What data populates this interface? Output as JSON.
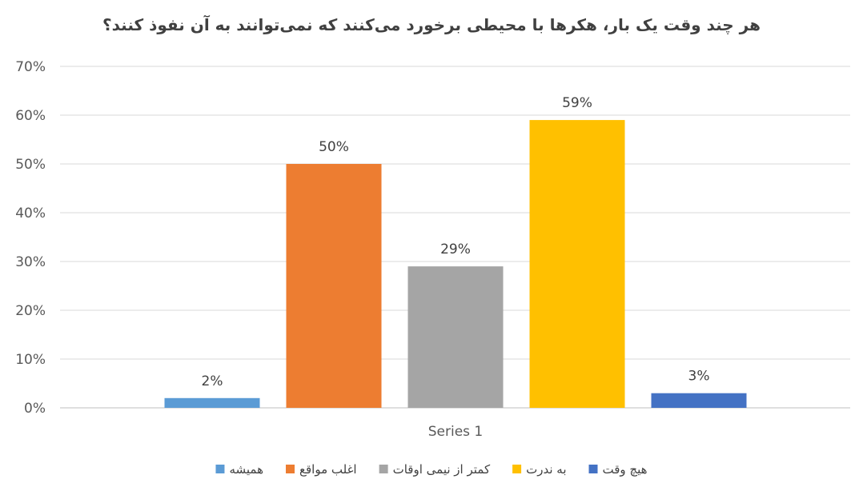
{
  "chart_data": {
    "type": "bar",
    "title": "هر چند وقت یک بار، هکرها با محیطی برخورد می‌کنند که نمی‌توانند به آن نفوذ کنند؟",
    "categories": [
      "Series 1"
    ],
    "series": [
      {
        "name": "همیشه",
        "values": [
          2
        ],
        "label": "2%",
        "color": "#5B9BD5"
      },
      {
        "name": "اغلب مواقع",
        "values": [
          50
        ],
        "label": "50%",
        "color": "#ED7D31"
      },
      {
        "name": "کمتر از نیمی اوقات",
        "values": [
          29
        ],
        "label": "29%",
        "color": "#A5A5A5"
      },
      {
        "name": "به ندرت",
        "values": [
          59
        ],
        "label": "59%",
        "color": "#FFC000"
      },
      {
        "name": "هیچ وقت",
        "values": [
          3
        ],
        "label": "3%",
        "color": "#4472C4"
      }
    ],
    "yticks": [
      "0%",
      "10%",
      "20%",
      "30%",
      "40%",
      "50%",
      "60%",
      "70%"
    ],
    "ylim": [
      0,
      70
    ],
    "unit": "%",
    "grid": true,
    "legend_position": "bottom"
  }
}
